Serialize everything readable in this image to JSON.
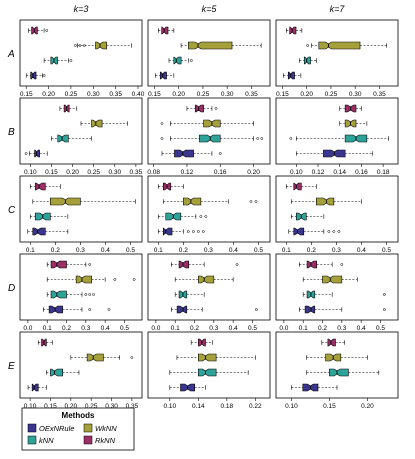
{
  "chart_data": {
    "type": "boxplot",
    "columns": [
      "k=3",
      "k=5",
      "k=7"
    ],
    "rows": [
      "A",
      "B",
      "C",
      "D",
      "E"
    ],
    "method_order_top_to_bottom": [
      "RkNN",
      "WkNN",
      "kNN",
      "OExNRule"
    ],
    "colors": {
      "OExNRule": "#3a3690",
      "kNN": "#2ea39a",
      "WkNN": "#a6a03a",
      "RkNN": "#9a2f68"
    },
    "legend": {
      "title": "Methods",
      "entries": [
        {
          "key": "OExNRule",
          "label": "OExNRule"
        },
        {
          "key": "WkNN",
          "label": "WkNN"
        },
        {
          "key": "kNN",
          "label": "kNN"
        },
        {
          "key": "RkNN",
          "label": "RkNN"
        }
      ]
    },
    "panels": [
      {
        "row": "A",
        "col": "k=3",
        "xlim": [
          0.145,
          0.4
        ],
        "ticks": [
          "0.15",
          "0.20",
          "0.25",
          "0.30",
          "0.35",
          "0.40"
        ],
        "boxes": [
          {
            "method": "RkNN",
            "min": 0.155,
            "q1": 0.162,
            "median": 0.168,
            "q3": 0.175,
            "max": 0.19,
            "outliers": [
              0.196
            ]
          },
          {
            "method": "WkNN",
            "min": 0.265,
            "q1": 0.305,
            "median": 0.315,
            "q3": 0.33,
            "max": 0.385,
            "outliers": [
              0.26,
              0.27,
              0.28
            ]
          },
          {
            "method": "kNN",
            "min": 0.19,
            "q1": 0.205,
            "median": 0.212,
            "q3": 0.22,
            "max": 0.245,
            "outliers": [
              0.25
            ]
          },
          {
            "method": "OExNRule",
            "min": 0.15,
            "q1": 0.16,
            "median": 0.165,
            "q3": 0.172,
            "max": 0.186,
            "outliers": [
              0.19
            ]
          }
        ]
      },
      {
        "row": "A",
        "col": "k=5",
        "xlim": [
          0.145,
          0.38
        ],
        "ticks": [
          "0.15",
          "0.20",
          "0.25",
          "0.30",
          "0.35"
        ],
        "boxes": [
          {
            "method": "RkNN",
            "min": 0.158,
            "q1": 0.165,
            "median": 0.17,
            "q3": 0.178,
            "max": 0.19,
            "outliers": []
          },
          {
            "method": "WkNN",
            "min": 0.205,
            "q1": 0.22,
            "median": 0.24,
            "q3": 0.31,
            "max": 0.37,
            "outliers": []
          },
          {
            "method": "kNN",
            "min": 0.18,
            "q1": 0.19,
            "median": 0.195,
            "q3": 0.205,
            "max": 0.22,
            "outliers": [
              0.226
            ]
          },
          {
            "method": "OExNRule",
            "min": 0.152,
            "q1": 0.162,
            "median": 0.167,
            "q3": 0.175,
            "max": 0.19,
            "outliers": []
          }
        ]
      },
      {
        "row": "A",
        "col": "k=7",
        "xlim": [
          0.145,
          0.38
        ],
        "ticks": [
          "0.15",
          "0.20",
          "0.25",
          "0.30",
          "0.35"
        ],
        "boxes": [
          {
            "method": "RkNN",
            "min": 0.158,
            "q1": 0.165,
            "median": 0.17,
            "q3": 0.178,
            "max": 0.19,
            "outliers": []
          },
          {
            "method": "WkNN",
            "min": 0.21,
            "q1": 0.225,
            "median": 0.245,
            "q3": 0.31,
            "max": 0.365,
            "outliers": [
              0.202
            ]
          },
          {
            "method": "kNN",
            "min": 0.185,
            "q1": 0.195,
            "median": 0.2,
            "q3": 0.208,
            "max": 0.22,
            "outliers": []
          },
          {
            "method": "OExNRule",
            "min": 0.152,
            "q1": 0.162,
            "median": 0.167,
            "q3": 0.175,
            "max": 0.188,
            "outliers": []
          }
        ]
      },
      {
        "row": "B",
        "col": "k=3",
        "xlim": [
          0.085,
          0.355
        ],
        "ticks": [
          "0.10",
          "0.15",
          "0.20",
          "0.25",
          "0.30",
          "0.35"
        ],
        "boxes": [
          {
            "method": "RkNN",
            "min": 0.17,
            "q1": 0.18,
            "median": 0.186,
            "q3": 0.192,
            "max": 0.21,
            "outliers": []
          },
          {
            "method": "WkNN",
            "min": 0.22,
            "q1": 0.245,
            "median": 0.255,
            "q3": 0.27,
            "max": 0.33,
            "outliers": []
          },
          {
            "method": "kNN",
            "min": 0.15,
            "q1": 0.165,
            "median": 0.175,
            "q3": 0.19,
            "max": 0.245,
            "outliers": []
          },
          {
            "method": "OExNRule",
            "min": 0.098,
            "q1": 0.11,
            "median": 0.115,
            "q3": 0.122,
            "max": 0.14,
            "outliers": [
              0.09
            ]
          }
        ]
      },
      {
        "row": "B",
        "col": "k=5",
        "xlim": [
          0.078,
          0.215
        ],
        "ticks": [
          "0.08",
          "0.12",
          "0.16",
          "0.20"
        ],
        "boxes": [
          {
            "method": "RkNN",
            "min": 0.12,
            "q1": 0.13,
            "median": 0.134,
            "q3": 0.14,
            "max": 0.15,
            "outliers": [
              0.155
            ]
          },
          {
            "method": "WkNN",
            "min": 0.1,
            "q1": 0.14,
            "median": 0.15,
            "q3": 0.16,
            "max": 0.2,
            "outliers": [
              0.09
            ]
          },
          {
            "method": "kNN",
            "min": 0.1,
            "q1": 0.135,
            "median": 0.148,
            "q3": 0.16,
            "max": 0.2,
            "outliers": [
              0.09,
              0.205,
              0.21
            ]
          },
          {
            "method": "OExNRule",
            "min": 0.09,
            "q1": 0.105,
            "median": 0.115,
            "q3": 0.128,
            "max": 0.15,
            "outliers": [
              0.16
            ]
          }
        ]
      },
      {
        "row": "B",
        "col": "k=7",
        "xlim": [
          0.085,
          0.19
        ],
        "ticks": [
          "0.10",
          "0.12",
          "0.14",
          "0.16",
          "0.18"
        ],
        "boxes": [
          {
            "method": "RkNN",
            "min": 0.14,
            "q1": 0.145,
            "median": 0.15,
            "q3": 0.155,
            "max": 0.16,
            "outliers": []
          },
          {
            "method": "WkNN",
            "min": 0.14,
            "q1": 0.145,
            "median": 0.15,
            "q3": 0.155,
            "max": 0.165,
            "outliers": []
          },
          {
            "method": "kNN",
            "min": 0.1,
            "q1": 0.145,
            "median": 0.155,
            "q3": 0.165,
            "max": 0.185,
            "outliers": [
              0.095
            ]
          },
          {
            "method": "OExNRule",
            "min": 0.1,
            "q1": 0.125,
            "median": 0.135,
            "q3": 0.145,
            "max": 0.17,
            "outliers": []
          }
        ]
      },
      {
        "row": "C",
        "col": "k=3",
        "xlim": [
          0.075,
          0.53
        ],
        "ticks": [
          "0.1",
          "0.2",
          "0.3",
          "0.4",
          "0.5"
        ],
        "boxes": [
          {
            "method": "RkNN",
            "min": 0.1,
            "q1": 0.12,
            "median": 0.135,
            "q3": 0.16,
            "max": 0.22,
            "outliers": []
          },
          {
            "method": "WkNN",
            "min": 0.11,
            "q1": 0.18,
            "median": 0.24,
            "q3": 0.3,
            "max": 0.52,
            "outliers": []
          },
          {
            "method": "kNN",
            "min": 0.1,
            "q1": 0.12,
            "median": 0.15,
            "q3": 0.18,
            "max": 0.25,
            "outliers": []
          },
          {
            "method": "OExNRule",
            "min": 0.09,
            "q1": 0.11,
            "median": 0.13,
            "q3": 0.16,
            "max": 0.25,
            "outliers": []
          }
        ]
      },
      {
        "row": "C",
        "col": "k=5",
        "xlim": [
          0.075,
          0.53
        ],
        "ticks": [
          "0.1",
          "0.2",
          "0.3",
          "0.4",
          "0.5"
        ],
        "boxes": [
          {
            "method": "RkNN",
            "min": 0.1,
            "q1": 0.12,
            "median": 0.135,
            "q3": 0.15,
            "max": 0.2,
            "outliers": []
          },
          {
            "method": "WkNN",
            "min": 0.12,
            "q1": 0.2,
            "median": 0.23,
            "q3": 0.27,
            "max": 0.38,
            "outliers": [
              0.47,
              0.49
            ]
          },
          {
            "method": "kNN",
            "min": 0.1,
            "q1": 0.13,
            "median": 0.16,
            "q3": 0.19,
            "max": 0.25,
            "outliers": [
              0.27,
              0.29
            ]
          },
          {
            "method": "OExNRule",
            "min": 0.1,
            "q1": 0.12,
            "median": 0.13,
            "q3": 0.155,
            "max": 0.2,
            "outliers": [
              0.22,
              0.24,
              0.26,
              0.28
            ]
          }
        ]
      },
      {
        "row": "C",
        "col": "k=7",
        "xlim": [
          0.075,
          0.53
        ],
        "ticks": [
          "0.1",
          "0.2",
          "0.3",
          "0.4",
          "0.5"
        ],
        "boxes": [
          {
            "method": "RkNN",
            "min": 0.1,
            "q1": 0.13,
            "median": 0.14,
            "q3": 0.16,
            "max": 0.22,
            "outliers": []
          },
          {
            "method": "WkNN",
            "min": 0.12,
            "q1": 0.22,
            "median": 0.26,
            "q3": 0.29,
            "max": 0.4,
            "outliers": []
          },
          {
            "method": "kNN",
            "min": 0.12,
            "q1": 0.14,
            "median": 0.16,
            "q3": 0.18,
            "max": 0.25,
            "outliers": []
          },
          {
            "method": "OExNRule",
            "min": 0.11,
            "q1": 0.13,
            "median": 0.145,
            "q3": 0.17,
            "max": 0.25,
            "outliers": [
              0.27,
              0.29,
              0.31
            ]
          }
        ]
      },
      {
        "row": "D",
        "col": "k=3",
        "xlim": [
          -0.02,
          0.57
        ],
        "ticks": [
          "0.0",
          "0.1",
          "0.2",
          "0.3",
          "0.4",
          "0.5"
        ],
        "boxes": [
          {
            "method": "RkNN",
            "min": 0.1,
            "q1": 0.12,
            "median": 0.15,
            "q3": 0.2,
            "max": 0.3,
            "outliers": [
              0.32
            ]
          },
          {
            "method": "WkNN",
            "min": 0.1,
            "q1": 0.25,
            "median": 0.28,
            "q3": 0.33,
            "max": 0.4,
            "outliers": [
              0.45,
              0.55
            ]
          },
          {
            "method": "kNN",
            "min": 0.1,
            "q1": 0.12,
            "median": 0.15,
            "q3": 0.2,
            "max": 0.28,
            "outliers": [
              0.3,
              0.32,
              0.34
            ]
          },
          {
            "method": "OExNRule",
            "min": 0.08,
            "q1": 0.11,
            "median": 0.14,
            "q3": 0.18,
            "max": 0.28,
            "outliers": [
              0.32,
              0.42
            ]
          }
        ]
      },
      {
        "row": "D",
        "col": "k=5",
        "xlim": [
          -0.02,
          0.57
        ],
        "ticks": [
          "0.0",
          "0.1",
          "0.2",
          "0.3",
          "0.4",
          "0.5"
        ],
        "boxes": [
          {
            "method": "RkNN",
            "min": 0.08,
            "q1": 0.12,
            "median": 0.14,
            "q3": 0.17,
            "max": 0.25,
            "outliers": [
              0.42
            ]
          },
          {
            "method": "WkNN",
            "min": 0.1,
            "q1": 0.22,
            "median": 0.25,
            "q3": 0.3,
            "max": 0.4,
            "outliers": []
          },
          {
            "method": "kNN",
            "min": 0.1,
            "q1": 0.12,
            "median": 0.14,
            "q3": 0.16,
            "max": 0.25,
            "outliers": []
          },
          {
            "method": "OExNRule",
            "min": 0.08,
            "q1": 0.11,
            "median": 0.14,
            "q3": 0.16,
            "max": 0.24,
            "outliers": [
              0.52
            ]
          }
        ]
      },
      {
        "row": "D",
        "col": "k=7",
        "xlim": [
          -0.02,
          0.57
        ],
        "ticks": [
          "0.0",
          "0.1",
          "0.2",
          "0.3",
          "0.4",
          "0.5"
        ],
        "boxes": [
          {
            "method": "RkNN",
            "min": 0.08,
            "q1": 0.12,
            "median": 0.14,
            "q3": 0.17,
            "max": 0.25,
            "outliers": [
              0.3
            ]
          },
          {
            "method": "WkNN",
            "min": 0.1,
            "q1": 0.2,
            "median": 0.24,
            "q3": 0.3,
            "max": 0.38,
            "outliers": []
          },
          {
            "method": "kNN",
            "min": 0.1,
            "q1": 0.12,
            "median": 0.14,
            "q3": 0.16,
            "max": 0.25,
            "outliers": [
              0.52
            ]
          },
          {
            "method": "OExNRule",
            "min": 0.08,
            "q1": 0.11,
            "median": 0.14,
            "q3": 0.16,
            "max": 0.3,
            "outliers": [
              0.52
            ]
          }
        ]
      },
      {
        "row": "E",
        "col": "k=3",
        "xlim": [
          0.085,
          0.365
        ],
        "ticks": [
          "0.10",
          "0.15",
          "0.20",
          "0.25",
          "0.30",
          "0.35"
        ],
        "boxes": [
          {
            "method": "RkNN",
            "min": 0.12,
            "q1": 0.128,
            "median": 0.134,
            "q3": 0.14,
            "max": 0.155,
            "outliers": []
          },
          {
            "method": "WkNN",
            "min": 0.2,
            "q1": 0.24,
            "median": 0.255,
            "q3": 0.28,
            "max": 0.32,
            "outliers": [
              0.35
            ]
          },
          {
            "method": "kNN",
            "min": 0.14,
            "q1": 0.15,
            "median": 0.16,
            "q3": 0.18,
            "max": 0.22,
            "outliers": []
          },
          {
            "method": "OExNRule",
            "min": 0.095,
            "q1": 0.105,
            "median": 0.11,
            "q3": 0.12,
            "max": 0.14,
            "outliers": []
          }
        ]
      },
      {
        "row": "E",
        "col": "k=5",
        "xlim": [
          0.075,
          0.235
        ],
        "ticks": [
          "0.10",
          "0.14",
          "0.18",
          "0.22"
        ],
        "boxes": [
          {
            "method": "RkNN",
            "min": 0.13,
            "q1": 0.14,
            "median": 0.145,
            "q3": 0.15,
            "max": 0.16,
            "outliers": []
          },
          {
            "method": "WkNN",
            "min": 0.11,
            "q1": 0.14,
            "median": 0.15,
            "q3": 0.165,
            "max": 0.22,
            "outliers": []
          },
          {
            "method": "kNN",
            "min": 0.1,
            "q1": 0.14,
            "median": 0.15,
            "q3": 0.165,
            "max": 0.21,
            "outliers": []
          },
          {
            "method": "OExNRule",
            "min": 0.1,
            "q1": 0.115,
            "median": 0.125,
            "q3": 0.135,
            "max": 0.15,
            "outliers": []
          }
        ]
      },
      {
        "row": "E",
        "col": "k=7",
        "xlim": [
          0.085,
          0.235
        ],
        "ticks": [
          "0.10",
          "0.15",
          "0.20"
        ],
        "boxes": [
          {
            "method": "RkNN",
            "min": 0.14,
            "q1": 0.148,
            "median": 0.152,
            "q3": 0.158,
            "max": 0.17,
            "outliers": []
          },
          {
            "method": "WkNN",
            "min": 0.12,
            "q1": 0.145,
            "median": 0.155,
            "q3": 0.165,
            "max": 0.2,
            "outliers": []
          },
          {
            "method": "kNN",
            "min": 0.12,
            "q1": 0.15,
            "median": 0.16,
            "q3": 0.175,
            "max": 0.215,
            "outliers": []
          },
          {
            "method": "OExNRule",
            "min": 0.1,
            "q1": 0.115,
            "median": 0.125,
            "q3": 0.135,
            "max": 0.16,
            "outliers": []
          }
        ]
      }
    ]
  }
}
